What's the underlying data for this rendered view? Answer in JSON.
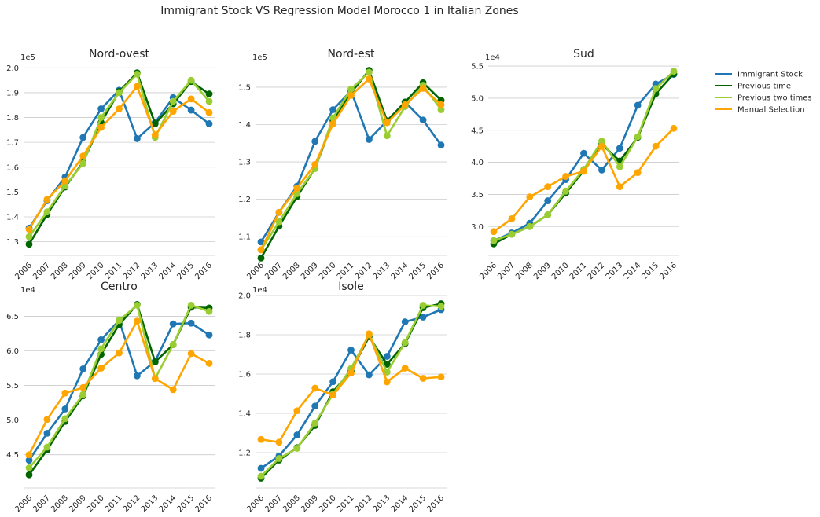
{
  "title": "Immigrant Stock VS Regression Model Morocco 1 in Italian Zones",
  "legend": {
    "placement": "right",
    "items": [
      {
        "label": "Immigrant Stock",
        "color": "#1f77b4"
      },
      {
        "label": "Previous time",
        "color": "#006400"
      },
      {
        "label": "Previous two times",
        "color": "#9acd32"
      },
      {
        "label": "Manual Selection",
        "color": "#ffa500"
      }
    ]
  },
  "chart_data": [
    {
      "type": "line",
      "title": "Nord-ovest",
      "exponent_label": "1e5",
      "ylim": [
        1.245,
        2.02
      ],
      "grid": true,
      "yticks": [
        1.3,
        1.4,
        1.5,
        1.6,
        1.7,
        1.8,
        1.9,
        2.0
      ],
      "ytick_labels": [
        "1.3",
        "1.4",
        "1.5",
        "1.6",
        "1.7",
        "1.8",
        "1.9",
        "2.0"
      ],
      "categories": [
        "2006",
        "2007",
        "2008",
        "2009",
        "2010",
        "2011",
        "2012",
        "2013",
        "2014",
        "2015",
        "2016"
      ],
      "series": [
        {
          "name": "Immigrant Stock",
          "color": "#1f77b4",
          "values": [
            1.355,
            1.465,
            1.56,
            1.72,
            1.835,
            1.91,
            1.715,
            1.78,
            1.88,
            1.83,
            1.775
          ]
        },
        {
          "name": "Previous time",
          "color": "#006400",
          "values": [
            1.29,
            1.41,
            1.52,
            1.62,
            1.78,
            1.905,
            1.98,
            1.775,
            1.855,
            1.945,
            1.895
          ]
        },
        {
          "name": "Previous two times",
          "color": "#9acd32",
          "values": [
            1.32,
            1.42,
            1.525,
            1.615,
            1.8,
            1.9,
            1.975,
            1.72,
            1.865,
            1.95,
            1.865
          ]
        },
        {
          "name": "Manual Selection",
          "color": "#ffa500",
          "values": [
            1.35,
            1.47,
            1.545,
            1.645,
            1.76,
            1.835,
            1.925,
            1.73,
            1.825,
            1.875,
            1.82
          ]
        }
      ]
    },
    {
      "type": "line",
      "title": "Nord-est",
      "exponent_label": "1e5",
      "ylim": [
        1.05,
        1.565
      ],
      "grid": true,
      "yticks": [
        1.1,
        1.2,
        1.3,
        1.4,
        1.5
      ],
      "ytick_labels": [
        "1.1",
        "1.2",
        "1.3",
        "1.4",
        "1.5"
      ],
      "categories": [
        "2006",
        "2007",
        "2008",
        "2009",
        "2010",
        "2011",
        "2012",
        "2013",
        "2014",
        "2015",
        "2016"
      ],
      "series": [
        {
          "name": "Immigrant Stock",
          "color": "#1f77b4",
          "values": [
            1.086,
            1.165,
            1.235,
            1.355,
            1.44,
            1.49,
            1.36,
            1.41,
            1.46,
            1.412,
            1.345
          ]
        },
        {
          "name": "Previous time",
          "color": "#006400",
          "values": [
            1.043,
            1.128,
            1.207,
            1.283,
            1.41,
            1.485,
            1.545,
            1.41,
            1.46,
            1.512,
            1.465
          ]
        },
        {
          "name": "Previous two times",
          "color": "#9acd32",
          "values": [
            1.065,
            1.14,
            1.215,
            1.282,
            1.418,
            1.495,
            1.54,
            1.37,
            1.448,
            1.505,
            1.44
          ]
        },
        {
          "name": "Manual Selection",
          "color": "#ffa500",
          "values": [
            1.065,
            1.165,
            1.23,
            1.293,
            1.402,
            1.478,
            1.522,
            1.405,
            1.453,
            1.497,
            1.453
          ]
        }
      ]
    },
    {
      "type": "line",
      "title": "Sud",
      "exponent_label": "1e4",
      "ylim": [
        2.55,
        5.55
      ],
      "grid": true,
      "yticks": [
        3.0,
        3.5,
        4.0,
        4.5,
        5.0,
        5.5
      ],
      "ytick_labels": [
        "3.0",
        "3.5",
        "4.0",
        "4.5",
        "5.0",
        "5.5"
      ],
      "categories": [
        "2006",
        "2007",
        "2008",
        "2009",
        "2010",
        "2011",
        "2012",
        "2013",
        "2014",
        "2015",
        "2016"
      ],
      "series": [
        {
          "name": "Immigrant Stock",
          "color": "#1f77b4",
          "values": [
            2.78,
            2.9,
            3.05,
            3.4,
            3.73,
            4.14,
            3.88,
            4.22,
            4.89,
            5.22,
            5.37
          ]
        },
        {
          "name": "Previous time",
          "color": "#006400",
          "values": [
            2.73,
            2.88,
            3.0,
            3.18,
            3.52,
            3.87,
            4.28,
            4.02,
            4.39,
            5.07,
            5.38
          ]
        },
        {
          "name": "Previous two times",
          "color": "#9acd32",
          "values": [
            2.78,
            2.88,
            3.0,
            3.18,
            3.55,
            3.89,
            4.33,
            3.93,
            4.4,
            5.15,
            5.42
          ]
        },
        {
          "name": "Manual Selection",
          "color": "#ffa500",
          "values": [
            2.92,
            3.12,
            3.46,
            3.62,
            3.78,
            3.86,
            4.25,
            3.62,
            3.84,
            4.25,
            4.53
          ]
        }
      ]
    },
    {
      "type": "line",
      "title": "Centro",
      "exponent_label": "1e4",
      "ylim": [
        4.02,
        6.8
      ],
      "grid": true,
      "yticks": [
        4.5,
        5.0,
        5.5,
        6.0,
        6.5
      ],
      "ytick_labels": [
        "4.5",
        "5.0",
        "5.5",
        "6.0",
        "6.5"
      ],
      "categories": [
        "2006",
        "2007",
        "2008",
        "2009",
        "2010",
        "2011",
        "2012",
        "2013",
        "2014",
        "2015",
        "2016"
      ],
      "series": [
        {
          "name": "Immigrant Stock",
          "color": "#1f77b4",
          "values": [
            4.42,
            4.81,
            5.16,
            5.74,
            6.16,
            6.44,
            5.64,
            5.85,
            6.39,
            6.4,
            6.23
          ]
        },
        {
          "name": "Previous time",
          "color": "#006400",
          "values": [
            4.21,
            4.57,
            4.98,
            5.35,
            5.95,
            6.38,
            6.67,
            5.84,
            6.09,
            6.63,
            6.62
          ]
        },
        {
          "name": "Previous two times",
          "color": "#9acd32",
          "values": [
            4.31,
            4.61,
            5.02,
            5.37,
            6.03,
            6.44,
            6.66,
            5.6,
            6.09,
            6.66,
            6.57
          ]
        },
        {
          "name": "Manual Selection",
          "color": "#ffa500",
          "values": [
            4.5,
            5.01,
            5.39,
            5.47,
            5.75,
            5.97,
            6.43,
            5.6,
            5.44,
            5.96,
            5.82
          ]
        }
      ]
    },
    {
      "type": "line",
      "title": "Isole",
      "exponent_label": "1e4",
      "ylim": [
        1.02,
        2.0
      ],
      "grid": true,
      "yticks": [
        1.2,
        1.4,
        1.6,
        1.8,
        2.0
      ],
      "ytick_labels": [
        "1.2",
        "1.4",
        "1.6",
        "1.8",
        "2.0"
      ],
      "categories": [
        "2006",
        "2007",
        "2008",
        "2009",
        "2010",
        "2011",
        "2012",
        "2013",
        "2014",
        "2015",
        "2016"
      ],
      "series": [
        {
          "name": "Immigrant Stock",
          "color": "#1f77b4",
          "values": [
            1.12,
            1.183,
            1.29,
            1.437,
            1.561,
            1.722,
            1.596,
            1.69,
            1.866,
            1.89,
            1.928
          ]
        },
        {
          "name": "Previous time",
          "color": "#006400",
          "values": [
            1.07,
            1.162,
            1.225,
            1.338,
            1.51,
            1.615,
            1.79,
            1.65,
            1.755,
            1.938,
            1.958
          ]
        },
        {
          "name": "Previous two times",
          "color": "#9acd32",
          "values": [
            1.08,
            1.17,
            1.222,
            1.35,
            1.498,
            1.628,
            1.8,
            1.61,
            1.76,
            1.95,
            1.945
          ]
        },
        {
          "name": "Manual Selection",
          "color": "#ffa500",
          "values": [
            1.267,
            1.253,
            1.413,
            1.528,
            1.493,
            1.605,
            1.805,
            1.56,
            1.63,
            1.578,
            1.585
          ]
        }
      ]
    }
  ]
}
